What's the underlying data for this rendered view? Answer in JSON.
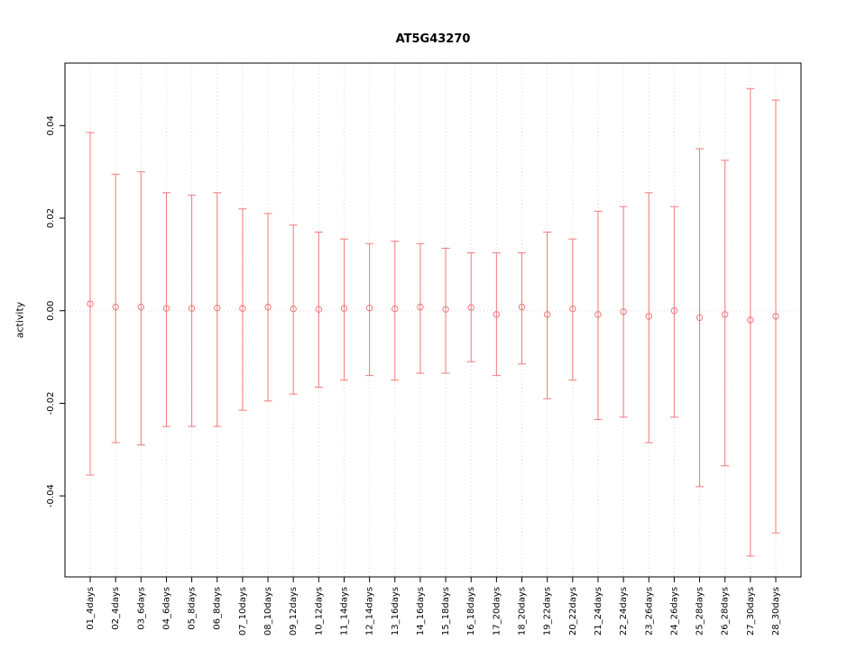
{
  "chart_data": {
    "type": "scatter",
    "variant": "points-with-error-bars",
    "title": "AT5G43270",
    "xlabel": "",
    "ylabel": "activity",
    "ylim": [
      -0.0575,
      0.0535
    ],
    "yticks": [
      -0.04,
      -0.02,
      0.0,
      0.02,
      0.04
    ],
    "grid": {
      "vertical_gridlines": true,
      "zero_line": true,
      "style": "dotted"
    },
    "legend": "none",
    "point_color": "#f07a7a",
    "grid_color": "#d9d9d9",
    "axis_color": "#000000",
    "categories": [
      "01_4days",
      "02_4days",
      "03_6days",
      "04_6days",
      "05_8days",
      "06_8days",
      "07_10days",
      "08_10days",
      "09_12days",
      "10_12days",
      "11_14days",
      "12_14days",
      "13_16days",
      "14_16days",
      "15_18days",
      "16_18days",
      "17_20days",
      "18_20days",
      "19_22days",
      "20_22days",
      "21_24days",
      "22_24days",
      "23_26days",
      "24_26days",
      "25_28days",
      "26_28days",
      "27_30days",
      "28_30days"
    ],
    "series": [
      {
        "name": "activity",
        "values": [
          0.0015,
          0.0008,
          0.0008,
          0.0005,
          0.0005,
          0.0006,
          0.0005,
          0.0008,
          0.0004,
          0.0003,
          0.0005,
          0.0006,
          0.0004,
          0.0008,
          0.0003,
          0.0007,
          -0.0008,
          0.0008,
          -0.0008,
          0.0004,
          -0.0008,
          -0.0002,
          -0.0012,
          0.0,
          -0.0015,
          -0.0008,
          -0.002,
          -0.0012
        ],
        "upper": [
          0.0385,
          0.0295,
          0.03,
          0.0255,
          0.025,
          0.0255,
          0.022,
          0.021,
          0.0185,
          0.017,
          0.0155,
          0.0145,
          0.015,
          0.0145,
          0.0135,
          0.0125,
          0.0125,
          0.0125,
          0.017,
          0.0155,
          0.0215,
          0.0225,
          0.0255,
          0.0225,
          0.035,
          0.0325,
          0.048,
          0.0455
        ],
        "lower": [
          -0.0355,
          -0.0285,
          -0.029,
          -0.025,
          -0.025,
          -0.025,
          -0.0215,
          -0.0195,
          -0.018,
          -0.0165,
          -0.015,
          -0.014,
          -0.015,
          -0.0135,
          -0.0135,
          -0.011,
          -0.014,
          -0.0115,
          -0.019,
          -0.015,
          -0.0235,
          -0.023,
          -0.0285,
          -0.023,
          -0.038,
          -0.0335,
          -0.053,
          -0.048
        ]
      }
    ]
  }
}
